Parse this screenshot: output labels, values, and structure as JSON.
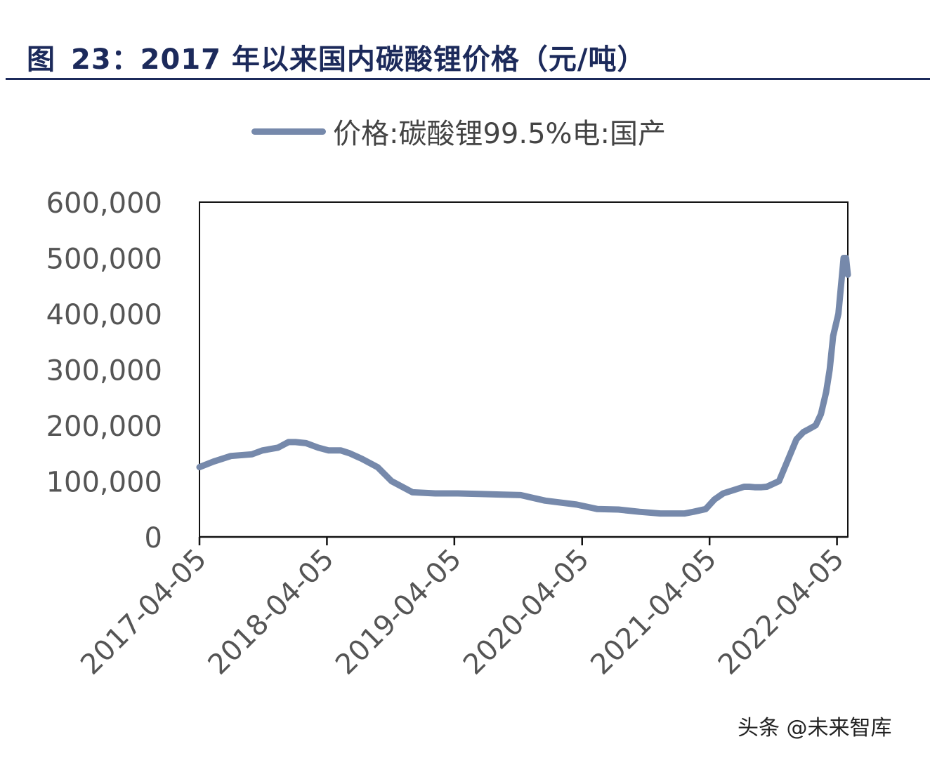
{
  "figure": {
    "label": "图",
    "title": "23：2017 年以来国内碳酸锂价格（元/吨）"
  },
  "watermark": "头条 @未来智库",
  "colors": {
    "title": "#1c2a5b",
    "line": "#7689ab",
    "axis": "#111111",
    "tick_text": "#555555"
  },
  "chart_data": {
    "type": "line",
    "title": "",
    "xlabel": "",
    "ylabel": "",
    "legend_position": "top-center",
    "grid": false,
    "ylim": [
      0,
      600000
    ],
    "xlim": [
      "2017-04-05",
      "2022-05-06"
    ],
    "y_ticks": [
      0,
      100000,
      200000,
      300000,
      400000,
      500000,
      600000
    ],
    "y_tick_labels": [
      "0",
      "100,000",
      "200,000",
      "300,000",
      "400,000",
      "500,000",
      "600,000"
    ],
    "x_ticks": [
      "2017-04-05",
      "2018-04-05",
      "2019-04-05",
      "2020-04-05",
      "2021-04-05",
      "2022-04-05"
    ],
    "series": [
      {
        "name": "价格:碳酸锂99.5%电:国产",
        "x": [
          "2017-04-05",
          "2017-05-15",
          "2017-07-04",
          "2017-09-02",
          "2017-10-02",
          "2017-11-16",
          "2017-12-16",
          "2018-01-05",
          "2018-02-04",
          "2018-03-11",
          "2018-04-10",
          "2018-05-15",
          "2018-06-09",
          "2018-07-14",
          "2018-08-28",
          "2018-10-07",
          "2018-12-06",
          "2019-02-09",
          "2019-04-15",
          "2019-06-14",
          "2019-08-13",
          "2019-10-12",
          "2019-12-21",
          "2020-03-20",
          "2020-05-19",
          "2020-07-18",
          "2020-09-16",
          "2020-11-15",
          "2020-12-20",
          "2021-01-24",
          "2021-02-18",
          "2021-03-25",
          "2021-04-19",
          "2021-05-14",
          "2021-07-13",
          "2021-07-28",
          "2021-08-12",
          "2021-09-01",
          "2021-09-16",
          "2021-10-21",
          "2021-11-20",
          "2021-12-10",
          "2021-12-30",
          "2022-01-14",
          "2022-02-03",
          "2022-02-18",
          "2022-03-05",
          "2022-03-15",
          "2022-03-25",
          "2022-04-09",
          "2022-04-24",
          "2022-05-01",
          "2022-05-06"
        ],
        "y": [
          125000,
          135000,
          145000,
          148000,
          155000,
          160000,
          170000,
          170000,
          168000,
          160000,
          155000,
          155000,
          150000,
          140000,
          125000,
          100000,
          80000,
          78000,
          78000,
          77000,
          76000,
          75000,
          65000,
          58000,
          50000,
          49000,
          45000,
          42000,
          42000,
          42000,
          45000,
          50000,
          67000,
          78000,
          90000,
          90000,
          89000,
          89000,
          90000,
          100000,
          145000,
          175000,
          188000,
          193000,
          200000,
          220000,
          260000,
          300000,
          360000,
          400000,
          500000,
          500000,
          470000
        ]
      }
    ]
  }
}
